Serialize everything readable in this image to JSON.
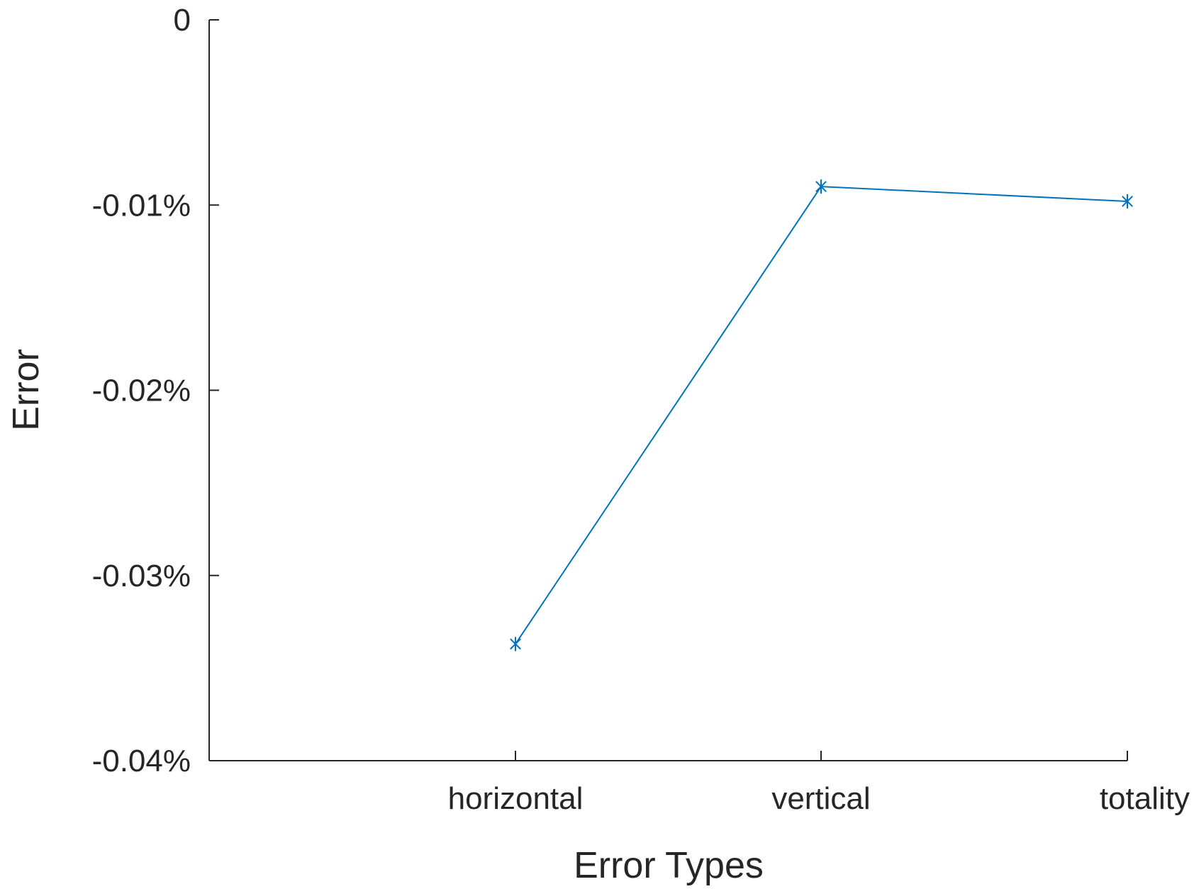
{
  "chart_data": {
    "type": "line",
    "title": "",
    "xlabel": "Error Types",
    "ylabel": "Error",
    "categories": [
      "horizontal",
      "vertical",
      "totality"
    ],
    "series": [
      {
        "values": [
          -0.0337,
          -0.009,
          -0.0098
        ],
        "color": "#0072bd",
        "marker": "asterisk"
      }
    ],
    "ylim": [
      -0.04,
      0
    ],
    "yticks": [
      0,
      -0.01,
      -0.02,
      -0.03,
      -0.04
    ],
    "ytick_labels": [
      "0",
      "-0.01%",
      "-0.02%",
      "-0.03%",
      "-0.04%"
    ],
    "grid": false,
    "legend": "none"
  }
}
